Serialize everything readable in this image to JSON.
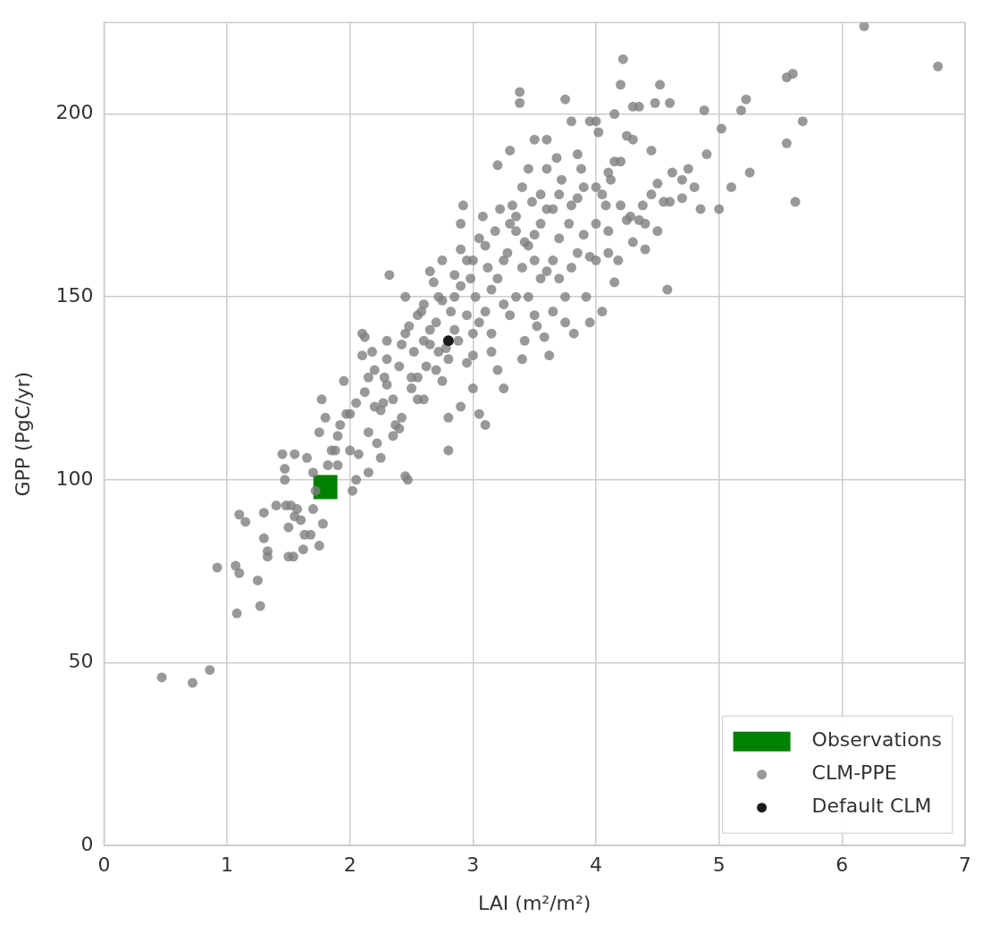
{
  "chart_data": {
    "type": "scatter",
    "x_label": "LAI (m²/m²)",
    "y_label": "GPP (PgC/yr)",
    "xlim": [
      0,
      7
    ],
    "xticks": [
      0,
      1,
      2,
      3,
      4,
      5,
      6,
      7
    ],
    "ylim": [
      0,
      225
    ],
    "yticks": [
      0,
      50,
      100,
      150,
      200
    ],
    "grid": true,
    "legend": "lower right",
    "series": [
      {
        "name": "Observations",
        "color": "#008000",
        "marker": "square",
        "x": [
          1.8
        ],
        "values": [
          98
        ]
      },
      {
        "name": "CLM-PPE",
        "color": "#808080",
        "marker": "circle",
        "x": [
          0.47,
          0.72,
          0.86,
          0.92,
          1.07,
          1.1,
          1.08,
          1.27,
          1.25,
          1.15,
          1.1,
          1.3,
          1.3,
          1.33,
          1.33,
          1.4,
          1.48,
          1.5,
          1.54,
          1.45,
          1.47,
          1.47,
          1.55,
          1.5,
          1.55,
          1.52,
          1.57,
          1.6,
          1.63,
          1.62,
          1.68,
          1.7,
          1.72,
          1.75,
          1.78,
          1.65,
          1.7,
          1.75,
          1.77,
          1.8,
          1.82,
          1.85,
          1.88,
          1.9,
          1.92,
          1.95,
          1.97,
          2.0,
          2.02,
          2.05,
          2.05,
          2.07,
          2.1,
          2.1,
          2.12,
          2.12,
          2.15,
          2.15,
          2.18,
          2.2,
          2.22,
          2.25,
          2.27,
          2.28,
          2.3,
          2.3,
          2.32,
          2.35,
          2.37,
          2.4,
          2.42,
          2.45,
          2.47,
          2.4,
          2.42,
          2.45,
          2.48,
          2.5,
          2.5,
          2.52,
          2.55,
          2.58,
          2.6,
          2.6,
          2.62,
          2.65,
          2.68,
          2.7,
          2.72,
          2.75,
          2.75,
          2.78,
          2.8,
          2.8,
          2.82,
          2.85,
          2.85,
          2.88,
          2.9,
          2.9,
          2.92,
          2.95,
          2.95,
          2.98,
          3.0,
          3.0,
          3.0,
          3.02,
          3.05,
          3.05,
          3.08,
          3.1,
          3.1,
          3.12,
          3.15,
          3.15,
          3.18,
          3.2,
          3.22,
          3.25,
          3.25,
          3.28,
          3.3,
          3.32,
          3.35,
          3.38,
          3.38,
          3.4,
          3.4,
          3.42,
          3.45,
          3.48,
          3.5,
          3.5,
          3.52,
          3.55,
          3.58,
          3.6,
          3.6,
          3.62,
          3.65,
          3.68,
          3.7,
          3.72,
          3.75,
          3.75,
          3.78,
          3.8,
          3.82,
          3.85,
          3.88,
          3.9,
          3.92,
          3.95,
          3.95,
          4.0,
          4.0,
          4.02,
          4.05,
          4.08,
          4.1,
          4.12,
          4.15,
          4.18,
          4.2,
          4.22,
          4.2,
          4.25,
          4.28,
          4.3,
          4.35,
          4.38,
          4.4,
          4.45,
          4.48,
          4.5,
          4.52,
          4.55,
          4.58,
          4.6,
          4.62,
          4.7,
          4.75,
          4.8,
          4.85,
          4.88,
          4.9,
          5.0,
          5.02,
          5.1,
          5.18,
          5.22,
          5.25,
          5.55,
          5.55,
          5.6,
          5.62,
          5.68,
          6.18,
          6.78,
          2.6,
          2.65,
          2.7,
          2.72,
          2.85,
          2.9,
          2.95,
          3.05,
          3.1,
          3.2,
          3.25,
          3.3,
          3.35,
          3.45,
          3.5,
          3.55,
          3.6,
          3.65,
          3.7,
          3.8,
          3.85,
          3.9,
          4.05,
          4.1,
          4.15,
          4.3,
          4.35,
          4.4,
          4.45,
          4.6,
          2.35,
          2.25,
          2.0,
          1.9,
          2.15,
          2.2,
          2.3,
          2.45,
          2.55,
          2.65,
          2.75,
          2.8,
          3.0,
          3.15,
          3.35,
          3.4,
          3.5,
          3.55,
          3.75,
          3.95,
          4.0,
          4.1,
          4.2,
          4.25,
          4.5,
          4.7,
          3.3,
          3.2,
          2.9,
          2.55,
          3.45,
          3.6,
          3.8,
          4.0,
          4.15,
          4.3,
          3.85,
          3.7,
          3.65,
          3.42
        ],
        "values": [
          46,
          44.5,
          48,
          76,
          76.5,
          74.5,
          63.5,
          65.5,
          72.5,
          88.5,
          90.5,
          91,
          84,
          80.5,
          79,
          93,
          93,
          79,
          79,
          107,
          103,
          100,
          107,
          87,
          90,
          93,
          92,
          89,
          85,
          81,
          85,
          92,
          97,
          82,
          88,
          106,
          102,
          113,
          122,
          117,
          104,
          108,
          108,
          112,
          115,
          127,
          118,
          118,
          97,
          100,
          121,
          107,
          134,
          140,
          139,
          124,
          102,
          113,
          135,
          130,
          110,
          106,
          121,
          128,
          126,
          133,
          156,
          112,
          115,
          114,
          117,
          101,
          100,
          131,
          137,
          140,
          142,
          125,
          128,
          135,
          122,
          146,
          122,
          148,
          131,
          141,
          154,
          130,
          135,
          160,
          149,
          136,
          117,
          108,
          146,
          156,
          150,
          138,
          163,
          170,
          175,
          145,
          132,
          155,
          160,
          134,
          125,
          150,
          143,
          118,
          172,
          164,
          115,
          158,
          140,
          152,
          168,
          186,
          174,
          125,
          148,
          162,
          190,
          175,
          172,
          206,
          203,
          180,
          133,
          165,
          150,
          176,
          193,
          160,
          142,
          170,
          139,
          185,
          157,
          134,
          174,
          188,
          166,
          182,
          204,
          143,
          170,
          158,
          140,
          177,
          185,
          167,
          150,
          198,
          143,
          160,
          180,
          195,
          146,
          175,
          168,
          182,
          154,
          160,
          208,
          215,
          187,
          194,
          172,
          165,
          202,
          175,
          170,
          190,
          203,
          168,
          208,
          176,
          152,
          203,
          184,
          182,
          185,
          180,
          174,
          201,
          189,
          174,
          196,
          180,
          201,
          204,
          184,
          192,
          210,
          211,
          176,
          198,
          224,
          213,
          138,
          137,
          143,
          150,
          141,
          153,
          160,
          166,
          146,
          155,
          160,
          170,
          168,
          164,
          167,
          178,
          174,
          160,
          155,
          175,
          162,
          180,
          178,
          184,
          187,
          193,
          171,
          163,
          178,
          176,
          122,
          119,
          108,
          104,
          128,
          120,
          138,
          150,
          145,
          157,
          127,
          133,
          140,
          135,
          150,
          158,
          145,
          155,
          150,
          161,
          170,
          162,
          175,
          171,
          181,
          177,
          145,
          130,
          120,
          128,
          185,
          193,
          198,
          198,
          200,
          202,
          189,
          178,
          146,
          138
        ]
      },
      {
        "name": "Default CLM",
        "color": "#1a1a1a",
        "marker": "circle",
        "x": [
          2.8
        ],
        "values": [
          138
        ]
      }
    ]
  }
}
